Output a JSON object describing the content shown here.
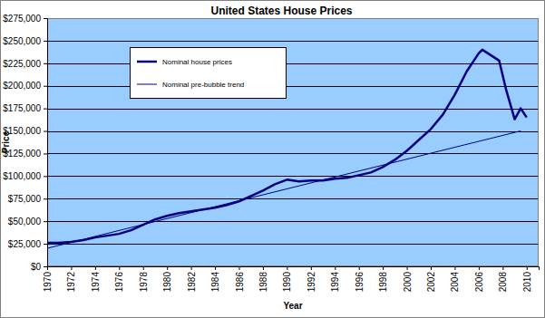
{
  "chart_data": {
    "type": "line",
    "title": "United States House Prices",
    "x_label": "Year",
    "y_label": "Price",
    "xlim": [
      1970,
      2011
    ],
    "xticks": [
      1970,
      1972,
      1974,
      1976,
      1978,
      1980,
      1982,
      1984,
      1986,
      1988,
      1990,
      1992,
      1994,
      1996,
      1998,
      2000,
      2002,
      2004,
      2006,
      2008,
      2010
    ],
    "ylim": [
      0,
      275000
    ],
    "yticks": [
      {
        "value": 0,
        "label": "$0"
      },
      {
        "value": 25000,
        "label": "$25,000"
      },
      {
        "value": 50000,
        "label": "$50,000"
      },
      {
        "value": 75000,
        "label": "$75,000"
      },
      {
        "value": 100000,
        "label": "$100,000"
      },
      {
        "value": 125000,
        "label": "$125,000"
      },
      {
        "value": 150000,
        "label": "$150,000"
      },
      {
        "value": 175000,
        "label": "$175,000"
      },
      {
        "value": 200000,
        "label": "$200,000"
      },
      {
        "value": 225000,
        "label": "$225,000"
      },
      {
        "value": 250000,
        "label": "$250,000"
      },
      {
        "value": 275000,
        "label": "$275,000"
      }
    ],
    "grid": true,
    "legend": "top-left",
    "series": [
      {
        "name": "Nominal house prices",
        "color": "#000080",
        "line_style": "solid",
        "x": [
          1970,
          1971,
          1972,
          1973,
          1974,
          1975,
          1976,
          1977,
          1978,
          1979,
          1980,
          1981,
          1982,
          1983,
          1984,
          1985,
          1986,
          1987,
          1988,
          1989,
          1990,
          1991,
          1992,
          1993,
          1994,
          1995,
          1996,
          1997,
          1998,
          1999,
          2000,
          2001,
          2002,
          2003,
          2004,
          2005,
          2006,
          2006.3,
          2007,
          2007.7,
          2008.3,
          2009,
          2009.5,
          2010
        ],
        "values": [
          26000,
          26000,
          27000,
          29000,
          32000,
          34000,
          36000,
          40000,
          46000,
          52000,
          56000,
          59000,
          61000,
          63000,
          65000,
          68000,
          72000,
          78000,
          84000,
          91000,
          96000,
          94000,
          95000,
          95000,
          97000,
          98000,
          101000,
          104000,
          110000,
          118000,
          128000,
          140000,
          152000,
          168000,
          190000,
          216000,
          236000,
          240000,
          234000,
          228000,
          195000,
          163000,
          175000,
          165000
        ]
      },
      {
        "name": "Nominal pre-bubble trend",
        "color": "#000080",
        "line_style": "solid",
        "x": [
          1970,
          2009.5
        ],
        "values": [
          20000,
          150000
        ]
      }
    ]
  }
}
